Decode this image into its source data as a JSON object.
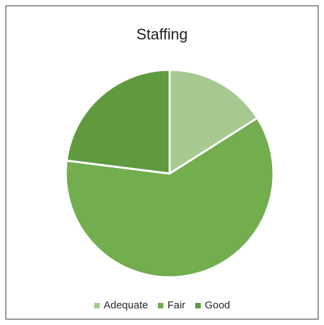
{
  "chart_data": {
    "type": "pie",
    "title": "Staffing",
    "categories": [
      "Adequate",
      "Fair",
      "Good"
    ],
    "values": [
      16,
      61,
      23
    ],
    "colors": [
      "#a5c98f",
      "#72ad4e",
      "#5f9a3f"
    ],
    "legend_position": "bottom",
    "start_angle_degrees": 0,
    "direction": "clockwise"
  }
}
